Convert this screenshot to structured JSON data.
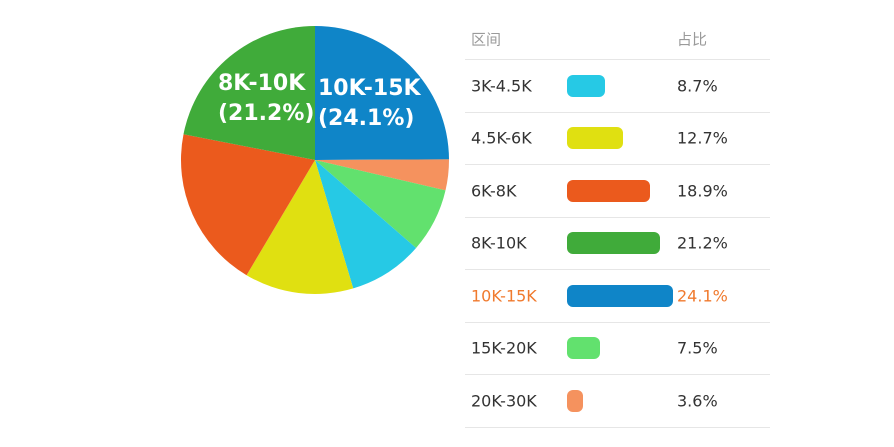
{
  "chart_data": {
    "type": "pie",
    "slices": [
      {
        "label": "10K-15K",
        "value": 24.1,
        "pct_text": "24.1%",
        "color": "#0f85c8"
      },
      {
        "label": "20K-30K",
        "value": 3.6,
        "pct_text": "3.6%",
        "color": "#f5925e"
      },
      {
        "label": "15K-20K",
        "value": 7.5,
        "pct_text": "7.5%",
        "color": "#62e16e"
      },
      {
        "label": "3K-4.5K",
        "value": 8.7,
        "pct_text": "8.7%",
        "color": "#26c9e5"
      },
      {
        "label": "4.5K-6K",
        "value": 12.7,
        "pct_text": "12.7%",
        "color": "#e0e011"
      },
      {
        "label": "6K-8K",
        "value": 18.9,
        "pct_text": "18.9%",
        "color": "#eb5a1d"
      },
      {
        "label": "8K-10K",
        "value": 21.2,
        "pct_text": "21.2%",
        "color": "#40ab3a"
      }
    ],
    "labeled_slices": [
      {
        "line1": "10K-15K",
        "line2": "(24.1%)"
      },
      {
        "line1": "8K-10K",
        "line2": "(21.2%)"
      }
    ]
  },
  "table": {
    "header": {
      "range": "区间",
      "pct": "占比"
    },
    "rows": [
      {
        "range": "3K-4.5K",
        "pct": "8.7%",
        "value": 8.7,
        "color": "#26c9e5",
        "highlight": false
      },
      {
        "range": "4.5K-6K",
        "pct": "12.7%",
        "value": 12.7,
        "color": "#e0e011",
        "highlight": false
      },
      {
        "range": "6K-8K",
        "pct": "18.9%",
        "value": 18.9,
        "color": "#eb5a1d",
        "highlight": false
      },
      {
        "range": "8K-10K",
        "pct": "21.2%",
        "value": 21.2,
        "color": "#40ab3a",
        "highlight": false
      },
      {
        "range": "10K-15K",
        "pct": "24.1%",
        "value": 24.1,
        "color": "#0f85c8",
        "highlight": true
      },
      {
        "range": "15K-20K",
        "pct": "7.5%",
        "value": 7.5,
        "color": "#62e16e",
        "highlight": false
      },
      {
        "range": "20K-30K",
        "pct": "3.6%",
        "value": 3.6,
        "color": "#f5925e",
        "highlight": false
      }
    ]
  }
}
